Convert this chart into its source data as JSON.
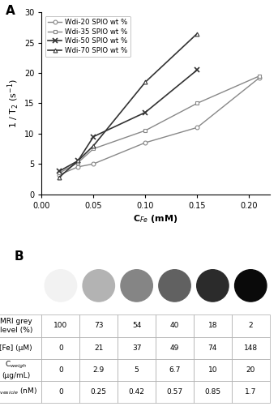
{
  "xlabel": "C$_{Fe}$ (mM)",
  "ylabel": "1 / T$_2$ (s$^{-1}$)",
  "xlim": [
    0,
    0.22
  ],
  "ylim": [
    0,
    30
  ],
  "xticks": [
    0,
    0.05,
    0.1,
    0.15,
    0.2
  ],
  "yticks": [
    0,
    5,
    10,
    15,
    20,
    25,
    30
  ],
  "series": [
    {
      "label": "Wdi-20 SPIO wt %",
      "x": [
        0.017,
        0.035,
        0.05,
        0.1,
        0.15,
        0.21
      ],
      "y": [
        3.2,
        4.5,
        5.0,
        8.5,
        11.0,
        19.2
      ],
      "marker": "o",
      "color": "#888888",
      "linewidth": 1.0,
      "ms": 3.5
    },
    {
      "label": "Wdi-35 SPIO wt %",
      "x": [
        0.017,
        0.035,
        0.05,
        0.1,
        0.15,
        0.21
      ],
      "y": [
        3.5,
        5.2,
        7.5,
        10.5,
        15.0,
        19.5
      ],
      "marker": "s",
      "color": "#888888",
      "linewidth": 1.0,
      "ms": 3.5
    },
    {
      "label": "Wdi-50 SPIO wt %",
      "x": [
        0.017,
        0.035,
        0.05,
        0.1,
        0.15
      ],
      "y": [
        3.8,
        5.5,
        9.5,
        13.5,
        20.5
      ],
      "marker": "x",
      "color": "#444444",
      "linewidth": 1.2,
      "ms": 4.5
    },
    {
      "label": "Wdi-70 SPIO wt %",
      "x": [
        0.017,
        0.035,
        0.05,
        0.1,
        0.15
      ],
      "y": [
        2.8,
        5.5,
        8.0,
        18.5,
        26.5
      ],
      "marker": "^",
      "color": "#444444",
      "linewidth": 1.2,
      "ms": 3.5
    }
  ],
  "row_labels": [
    "MRI grey\nlevel (%)",
    "[Fe] (μM)",
    "C_weigh\n(μg/mL)",
    "C_vesicle (nM)"
  ],
  "row_labels_math": [
    false,
    false,
    true,
    true
  ],
  "row1_values": [
    "100",
    "73",
    "54",
    "40",
    "18",
    "2"
  ],
  "row2_values": [
    "0",
    "21",
    "37",
    "49",
    "74",
    "148"
  ],
  "row3_values": [
    "0",
    "2.9",
    "5",
    "6.7",
    "10",
    "20"
  ],
  "row4_values": [
    "0",
    "0.25",
    "0.42",
    "0.57",
    "0.85",
    "1.7"
  ],
  "circle_grays": [
    0.95,
    0.7,
    0.52,
    0.38,
    0.17,
    0.04
  ]
}
